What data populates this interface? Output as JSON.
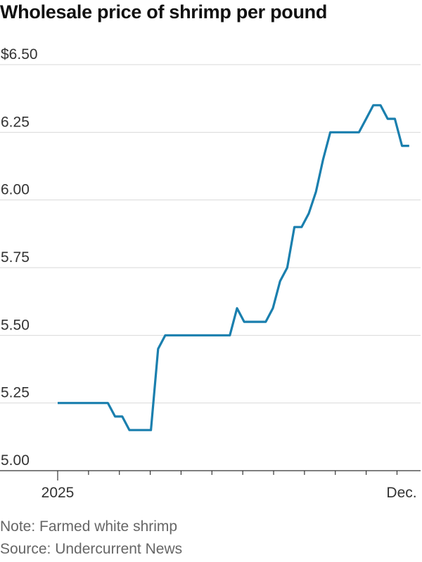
{
  "title": "Wholesale price of shrimp per pound",
  "note": "Note: Farmed white shrimp",
  "source": "Source: Undercurrent News",
  "colors": {
    "line": "#1a7fae",
    "grid": "#d9d9d9",
    "axis": "#333333"
  },
  "chart_data": {
    "type": "line",
    "title": "Wholesale price of shrimp per pound",
    "ylim": [
      5.0,
      6.5
    ],
    "yticks": [
      5.0,
      5.25,
      5.5,
      5.75,
      6.0,
      6.25,
      6.5
    ],
    "ytick_labels": [
      "5.00",
      "5.25",
      "5.50",
      "5.75",
      "6.00",
      "6.25",
      "$6.50"
    ],
    "xtick_labels": [
      {
        "label": "2025",
        "week": 0
      },
      {
        "label": "Dec.",
        "week": 48
      }
    ],
    "grid": true,
    "series": [
      {
        "weeks": [
          0,
          7,
          8,
          9,
          10,
          13,
          14,
          15,
          24,
          25,
          26,
          29,
          30,
          31,
          32,
          33,
          34,
          35,
          36,
          37,
          38,
          39,
          42,
          43,
          44,
          45,
          46,
          47,
          48,
          49
        ],
        "values": [
          5.25,
          5.25,
          5.2,
          5.2,
          5.15,
          5.15,
          5.45,
          5.5,
          5.5,
          5.6,
          5.55,
          5.55,
          5.6,
          5.7,
          5.75,
          5.9,
          5.9,
          5.95,
          6.03,
          6.15,
          6.25,
          6.25,
          6.25,
          6.3,
          6.35,
          6.35,
          6.3,
          6.3,
          6.2,
          6.2
        ]
      }
    ]
  }
}
